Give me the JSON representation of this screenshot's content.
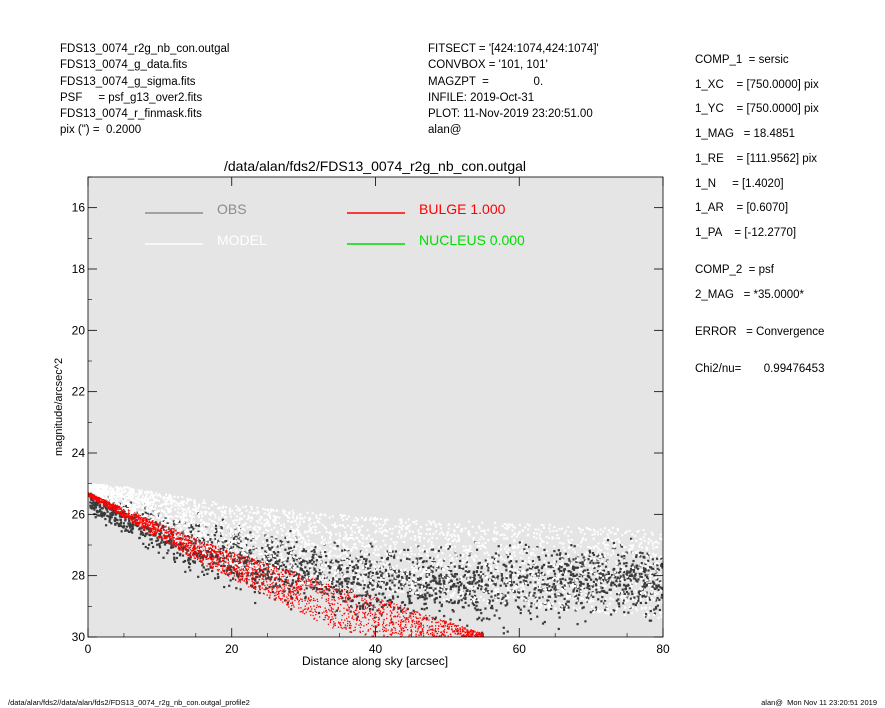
{
  "header_left": [
    "FDS13_0074_r2g_nb_con.outgal",
    "FDS13_0074_g_data.fits",
    "FDS13_0074_g_sigma.fits",
    "PSF     = psf_g13_over2.fits",
    "FDS13_0074_r_finmask.fits",
    "pix (\") =  0.2000"
  ],
  "header_mid": [
    "FITSECT = '[424:1074,424:1074]'",
    "CONVBOX = '101, 101'",
    "MAGZPT  =              0.",
    "INFILE: 2019-Oct-31",
    "PLOT: 11-Nov-2019 23:20:51.00",
    "alan@"
  ],
  "header_right": [
    "COMP_1  = sersic",
    "1_XC    = [750.0000] pix",
    "1_YC    = [750.0000] pix",
    "1_MAG   = 18.4851",
    "1_RE    = [111.9562] pix",
    "1_N     = [1.4020]",
    "1_AR    = [0.6070]",
    "1_PA    = [-12.2770]",
    "",
    "COMP_2  = psf",
    "2_MAG   = *35.0000*",
    "",
    "ERROR   = Convergence",
    "",
    "Chi2/nu=       0.99476453"
  ],
  "footer_left": "/data/alan/fds2//data/alan/fds2/FDS13_0074_r2g_nb_con.outgal_profile2",
  "footer_right": "alan@  Mon Nov 11 23:20:51 2019",
  "chart_data": {
    "type": "scatter",
    "title": "/data/alan/fds2/FDS13_0074_r2g_nb_con.outgal",
    "xlabel": "Distance along sky [arcsec]",
    "ylabel": "magnitude/arcsec^2",
    "xlim": [
      0,
      80
    ],
    "ylim": [
      30,
      15
    ],
    "y_inverted": true,
    "xticks": [
      0,
      20,
      40,
      60,
      80
    ],
    "yticks": [
      16,
      18,
      20,
      22,
      24,
      26,
      28,
      30
    ],
    "background": "#e5e5e5",
    "grid": false,
    "legend": [
      {
        "label": "OBS",
        "color": "#8c8c8c"
      },
      {
        "label": "MODEL",
        "color": "#ffffff"
      },
      {
        "label": "BULGE  1.000",
        "color": "#ff0000"
      },
      {
        "label": "NUCLEUS  0.000",
        "color": "#00dd00"
      }
    ],
    "series": [
      {
        "name": "OBS",
        "color": "#3a3a3a",
        "kind": "noisy_points",
        "x": [
          0,
          5,
          10,
          15,
          20,
          30,
          40,
          50,
          60,
          70,
          80
        ],
        "y_center": [
          25.6,
          26.1,
          26.6,
          27.0,
          27.4,
          27.9,
          28.2,
          28.3,
          28.3,
          28.2,
          28.2
        ],
        "y_spread": [
          0.5,
          0.9,
          1.2,
          1.4,
          1.5,
          1.7,
          1.8,
          1.9,
          1.9,
          1.9,
          1.9
        ]
      },
      {
        "name": "MODEL",
        "color": "#ffffff",
        "kind": "band_points",
        "x": [
          0,
          5,
          10,
          15,
          20,
          25,
          30,
          40,
          50,
          60,
          70,
          80
        ],
        "y_top": [
          25.0,
          25.1,
          25.3,
          25.5,
          25.7,
          25.8,
          25.9,
          26.1,
          26.2,
          26.3,
          26.4,
          26.5
        ],
        "y_bottom": [
          25.2,
          25.9,
          26.6,
          27.2,
          27.7,
          28.0,
          28.3,
          28.6,
          28.8,
          29.0,
          29.2,
          29.4
        ]
      },
      {
        "name": "BULGE  1.000",
        "color": "#ff0000",
        "kind": "band_points",
        "x": [
          0,
          5,
          10,
          15,
          20,
          25,
          30,
          35,
          40,
          45,
          50,
          55
        ],
        "y_top": [
          25.3,
          25.8,
          26.3,
          26.8,
          27.2,
          27.6,
          28.0,
          28.4,
          28.7,
          29.1,
          29.5,
          29.9
        ],
        "y_bottom": [
          25.4,
          26.1,
          26.8,
          27.5,
          28.1,
          28.7,
          29.3,
          29.8,
          30.0,
          30.0,
          30.0,
          30.0
        ]
      }
    ]
  }
}
